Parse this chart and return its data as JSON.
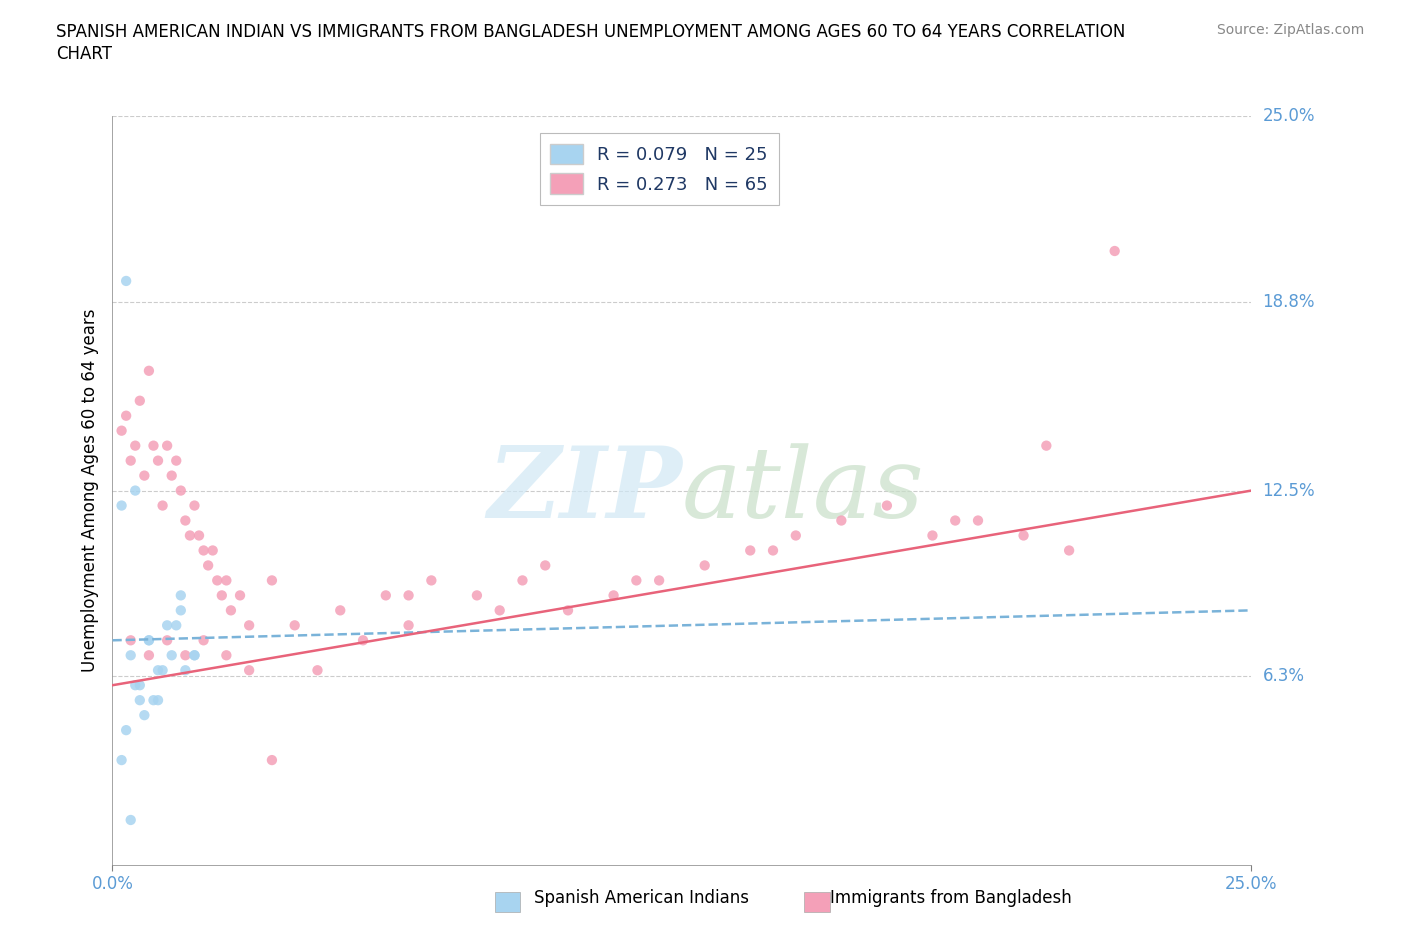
{
  "title": "SPANISH AMERICAN INDIAN VS IMMIGRANTS FROM BANGLADESH UNEMPLOYMENT AMONG AGES 60 TO 64 YEARS CORRELATION\nCHART",
  "source": "Source: ZipAtlas.com",
  "ylabel": "Unemployment Among Ages 60 to 64 years",
  "xlim": [
    0,
    25
  ],
  "ylim": [
    0,
    25
  ],
  "x_tick_labels": [
    "0.0%",
    "25.0%"
  ],
  "y_tick_labels": [
    "25.0%",
    "18.8%",
    "12.5%",
    "6.3%"
  ],
  "y_tick_vals": [
    25.0,
    18.8,
    12.5,
    6.3
  ],
  "watermark_zip": "ZIP",
  "watermark_atlas": "atlas",
  "series1_color": "#a8d4f0",
  "series2_color": "#f4a0b8",
  "trend1_color": "#7ab3d9",
  "trend2_color": "#e8637a",
  "series1_label": "R = 0.079   N = 25",
  "series2_label": "R = 0.273   N = 65",
  "bottom_label1": "Spanish American Indians",
  "bottom_label2": "Immigrants from Bangladesh",
  "series1_x": [
    0.3,
    0.5,
    0.8,
    1.0,
    1.2,
    1.5,
    1.8,
    0.2,
    0.4,
    0.6,
    0.9,
    1.1,
    1.4,
    0.3,
    0.7,
    1.3,
    1.6,
    0.5,
    0.8,
    1.0,
    1.5,
    0.2,
    0.6,
    1.8,
    0.4
  ],
  "series1_y": [
    19.5,
    12.5,
    7.5,
    6.5,
    8.0,
    9.0,
    7.0,
    12.0,
    7.0,
    6.0,
    5.5,
    6.5,
    8.0,
    4.5,
    5.0,
    7.0,
    6.5,
    6.0,
    7.5,
    5.5,
    8.5,
    3.5,
    5.5,
    7.0,
    1.5
  ],
  "series2_x": [
    0.2,
    0.3,
    0.4,
    0.5,
    0.6,
    0.7,
    0.8,
    0.9,
    1.0,
    1.1,
    1.2,
    1.3,
    1.4,
    1.5,
    1.6,
    1.7,
    1.8,
    1.9,
    2.0,
    2.1,
    2.2,
    2.3,
    2.4,
    2.5,
    2.6,
    2.8,
    3.0,
    3.5,
    4.0,
    5.0,
    6.0,
    7.0,
    8.0,
    9.0,
    10.0,
    11.0,
    12.0,
    13.0,
    14.0,
    15.0,
    16.0,
    17.0,
    18.0,
    19.0,
    20.0,
    21.0,
    22.0,
    0.4,
    0.8,
    1.2,
    1.6,
    2.0,
    2.5,
    3.0,
    4.5,
    5.5,
    6.5,
    8.5,
    11.5,
    14.5,
    18.5,
    20.5,
    3.5,
    6.5,
    9.5
  ],
  "series2_y": [
    14.5,
    15.0,
    13.5,
    14.0,
    15.5,
    13.0,
    16.5,
    14.0,
    13.5,
    12.0,
    14.0,
    13.0,
    13.5,
    12.5,
    11.5,
    11.0,
    12.0,
    11.0,
    10.5,
    10.0,
    10.5,
    9.5,
    9.0,
    9.5,
    8.5,
    9.0,
    8.0,
    9.5,
    8.0,
    8.5,
    9.0,
    9.5,
    9.0,
    9.5,
    8.5,
    9.0,
    9.5,
    10.0,
    10.5,
    11.0,
    11.5,
    12.0,
    11.0,
    11.5,
    11.0,
    10.5,
    20.5,
    7.5,
    7.0,
    7.5,
    7.0,
    7.5,
    7.0,
    6.5,
    6.5,
    7.5,
    8.0,
    8.5,
    9.5,
    10.5,
    11.5,
    14.0,
    3.5,
    9.0,
    10.0
  ],
  "trend1_x_start": 0,
  "trend1_x_end": 25,
  "trend1_y_start": 7.5,
  "trend1_y_end": 8.5,
  "trend2_x_start": 0,
  "trend2_x_end": 25,
  "trend2_y_start": 6.0,
  "trend2_y_end": 12.5
}
